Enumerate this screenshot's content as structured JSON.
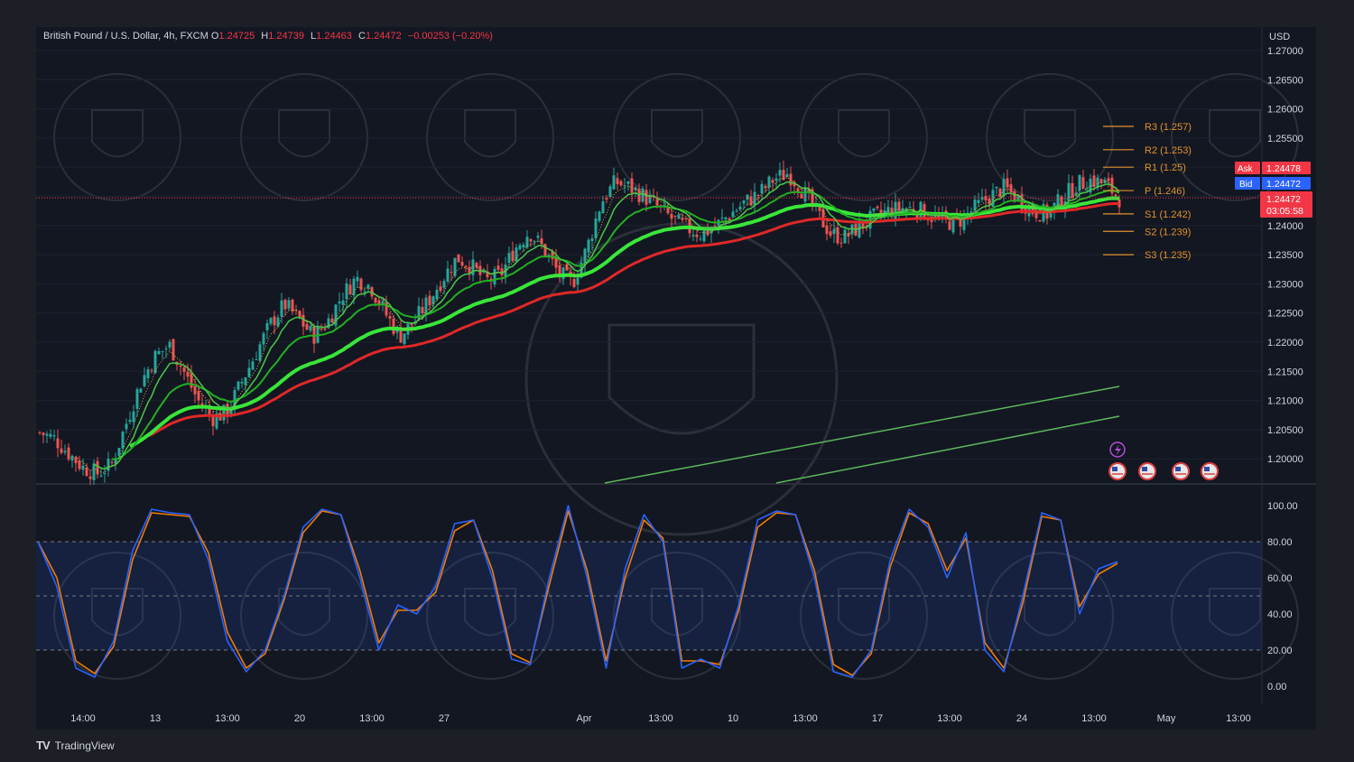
{
  "header": {
    "symbol_desc": "British Pound / U.S. Dollar, 4h, FXCM",
    "ohlc": [
      {
        "label": "O",
        "value": "1.24725"
      },
      {
        "label": "H",
        "value": "1.24739"
      },
      {
        "label": "L",
        "value": "1.24463"
      },
      {
        "label": "C",
        "value": "1.24472"
      }
    ],
    "change": "−0.00253 (−0.20%)"
  },
  "price_axis": {
    "currency": "USD",
    "ask_label": "Ask",
    "ask_value": "1.24478",
    "bid_label": "Bid",
    "bid_value": "1.24472",
    "last_value": "1.24472",
    "countdown": "03:05:58"
  },
  "branding": {
    "logo": "TV",
    "name": "TradingView"
  },
  "colors": {
    "background": "#131722",
    "up": "#26a69a",
    "down": "#ef5350",
    "pivot_line": "#e0922c",
    "ema_bright": "#39e639",
    "ema_red": "#e02828",
    "stoch_k": "#2962ff",
    "stoch_d": "#f57c00"
  },
  "chart_data": [
    {
      "type": "candlestick",
      "title": "British Pound / U.S. Dollar, 4h, FXCM",
      "ylabel": "USD",
      "ylim": [
        1.195,
        1.2725
      ],
      "y_ticks": [
        "1.27000",
        "1.26500",
        "1.26000",
        "1.25500",
        "1.25000",
        "1.24500",
        "1.24000",
        "1.23500",
        "1.23000",
        "1.22500",
        "1.22000",
        "1.21500",
        "1.21000",
        "1.20500",
        "1.20000"
      ],
      "x_ticks": [
        "14:00",
        "13",
        "13:00",
        "20",
        "13:00",
        "27",
        "Apr",
        "13:00",
        "10",
        "13:00",
        "17",
        "13:00",
        "24",
        "13:00",
        "May",
        "13:00"
      ],
      "price_path": [
        1.2045,
        1.2035,
        1.201,
        1.1985,
        1.1975,
        1.199,
        1.206,
        1.213,
        1.2175,
        1.2195,
        1.215,
        1.21,
        1.207,
        1.208,
        1.213,
        1.218,
        1.223,
        1.2265,
        1.224,
        1.221,
        1.2235,
        1.228,
        1.231,
        1.2295,
        1.225,
        1.221,
        1.2235,
        1.227,
        1.231,
        1.2345,
        1.233,
        1.2305,
        1.2315,
        1.236,
        1.239,
        1.236,
        1.232,
        1.23,
        1.236,
        1.244,
        1.2475,
        1.2465,
        1.245,
        1.243,
        1.241,
        1.2395,
        1.2385,
        1.24,
        1.242,
        1.244,
        1.2455,
        1.248,
        1.249,
        1.246,
        1.242,
        1.2385,
        1.238,
        1.24,
        1.2415,
        1.2425,
        1.243,
        1.2428,
        1.2415,
        1.2405,
        1.241,
        1.243,
        1.245,
        1.2465,
        1.2445,
        1.2425,
        1.242,
        1.2445,
        1.247,
        1.2478,
        1.2472,
        1.2447
      ],
      "pivots": [
        {
          "label": "R3 (1.257)",
          "value": 1.257
        },
        {
          "label": "R2 (1.253)",
          "value": 1.253
        },
        {
          "label": "R1 (1.25)",
          "value": 1.25
        },
        {
          "label": "P (1.246)",
          "value": 1.246
        },
        {
          "label": "S1 (1.242)",
          "value": 1.242
        },
        {
          "label": "S2 (1.239)",
          "value": 1.239
        },
        {
          "label": "S3 (1.235)",
          "value": 1.235
        }
      ],
      "current_price": 1.24472
    },
    {
      "type": "line",
      "ylim": [
        -5,
        105
      ],
      "y_ticks": [
        "100.00",
        "80.00",
        "60.00",
        "40.00",
        "20.00",
        "0.00"
      ],
      "band": [
        20,
        80
      ],
      "midline": 50,
      "series": [
        {
          "values": [
            80,
            55,
            10,
            5,
            25,
            75,
            98,
            96,
            95,
            70,
            25,
            8,
            20,
            50,
            88,
            98,
            95,
            60,
            20,
            45,
            40,
            55,
            90,
            92,
            60,
            15,
            12,
            60,
            100,
            60,
            10,
            65,
            95,
            80,
            10,
            15,
            10,
            45,
            92,
            97,
            95,
            60,
            8,
            5,
            20,
            70,
            98,
            88,
            60,
            85,
            20,
            8,
            50,
            96,
            92,
            40,
            65,
            69
          ]
        },
        {
          "values": [
            80,
            60,
            14,
            7,
            22,
            70,
            96,
            95,
            94,
            74,
            30,
            10,
            18,
            48,
            85,
            97,
            95,
            64,
            24,
            42,
            42,
            52,
            86,
            92,
            64,
            18,
            13,
            56,
            97,
            64,
            14,
            60,
            92,
            82,
            14,
            14,
            12,
            42,
            88,
            96,
            95,
            64,
            12,
            6,
            18,
            66,
            96,
            90,
            64,
            82,
            24,
            10,
            46,
            94,
            92,
            44,
            62,
            68
          ]
        }
      ]
    }
  ]
}
